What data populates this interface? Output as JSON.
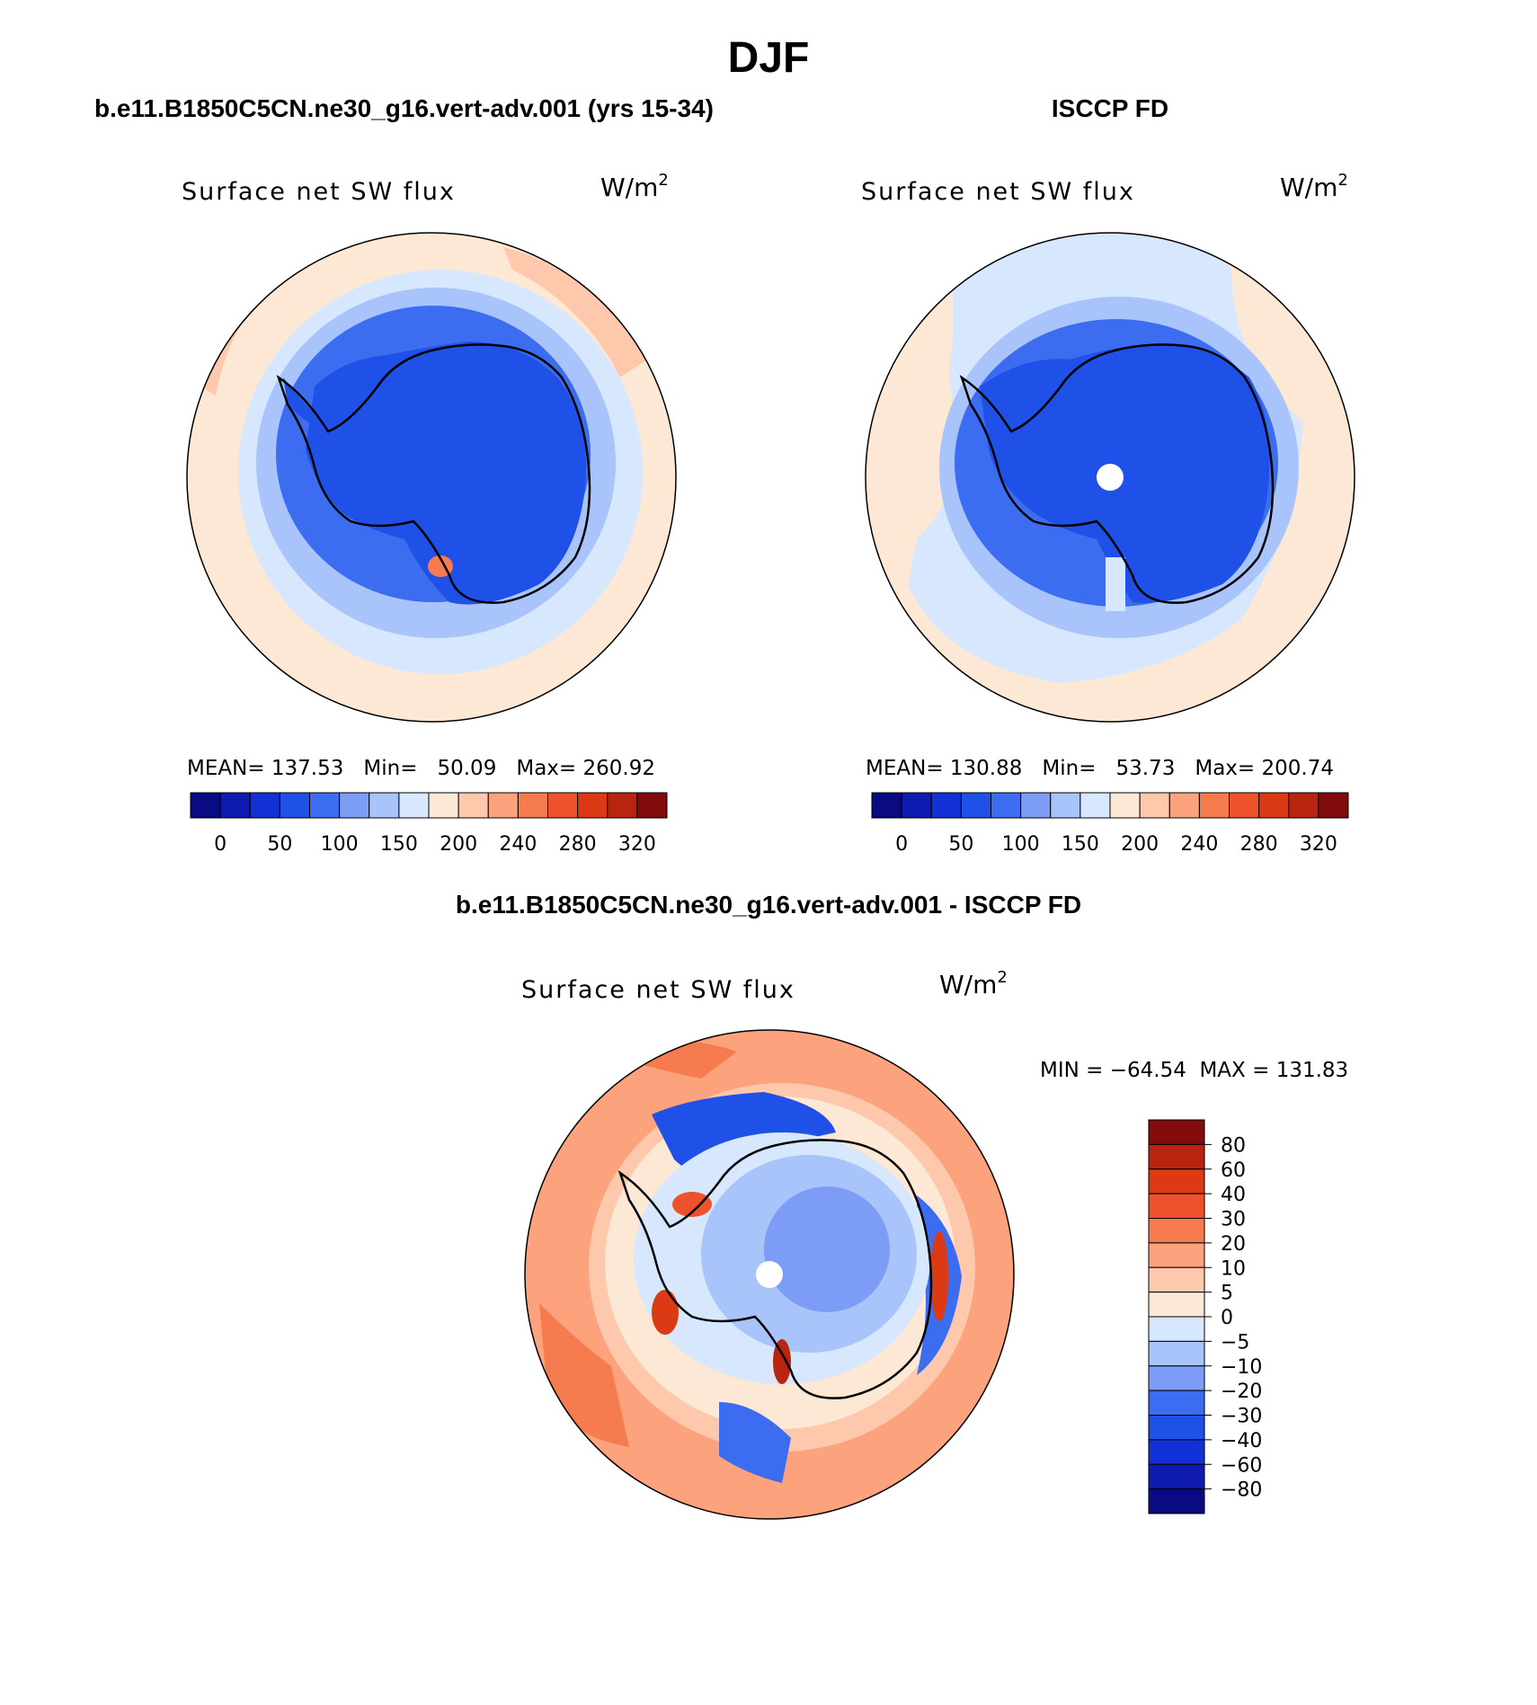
{
  "chart_data": {
    "type": "heatmap",
    "title": "DJF",
    "colors": {
      "abs": [
        "#0a0a82",
        "#0e1ab0",
        "#1232d8",
        "#1f50e8",
        "#3c6cf0",
        "#7c9cf5",
        "#a9c4fb",
        "#d7e7fd",
        "#fde8d6",
        "#fdc8ac",
        "#fca27c",
        "#f67c50",
        "#ee522c",
        "#dc3a14",
        "#b82410",
        "#820c0c"
      ],
      "diff": [
        "#0a0a82",
        "#0e1ab0",
        "#1232d8",
        "#1f50e8",
        "#3c6cf0",
        "#7c9cf5",
        "#a9c4fb",
        "#d7e7fd",
        "#fde8d6",
        "#fdc8ac",
        "#fca27c",
        "#f67c50",
        "#ee522c",
        "#dc3a14",
        "#b82410",
        "#820c0c"
      ]
    },
    "panels": [
      {
        "id": "model",
        "heading": "b.e11.B1850C5CN.ne30_g16.vert-adv.001 (yrs 15-34)",
        "variable": "Surface net SW flux",
        "units_base": "W/m",
        "units_exp": "2",
        "stats": {
          "mean_label": "MEAN=",
          "mean": "137.53",
          "min_label": "Min=",
          "min": "50.09",
          "max_label": "Max=",
          "max": "260.92"
        },
        "colorbar_ticks": [
          "0",
          "50",
          "100",
          "150",
          "200",
          "240",
          "280",
          "320"
        ]
      },
      {
        "id": "obs",
        "heading": "ISCCP FD",
        "variable": "Surface net SW flux",
        "units_base": "W/m",
        "units_exp": "2",
        "stats": {
          "mean_label": "MEAN=",
          "mean": "130.88",
          "min_label": "Min=",
          "min": "53.73",
          "max_label": "Max=",
          "max": "200.74"
        },
        "colorbar_ticks": [
          "0",
          "50",
          "100",
          "150",
          "200",
          "240",
          "280",
          "320"
        ]
      },
      {
        "id": "diff",
        "heading": "b.e11.B1850C5CN.ne30_g16.vert-adv.001 - ISCCP FD",
        "variable": "Surface net SW flux",
        "units_base": "W/m",
        "units_exp": "2",
        "range_text": "MIN = −64.54  MAX = 131.83",
        "colorbar_levels": [
          "80",
          "60",
          "40",
          "30",
          "20",
          "10",
          "5",
          "0",
          "−5",
          "−10",
          "−20",
          "−30",
          "−40",
          "−60",
          "−80"
        ]
      }
    ]
  }
}
